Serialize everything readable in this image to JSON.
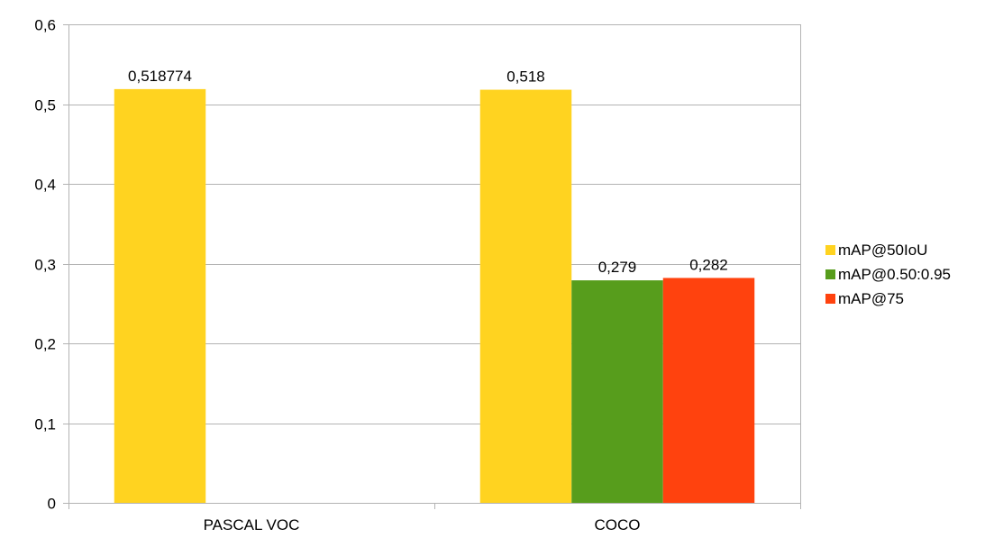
{
  "chart_data": {
    "type": "bar",
    "categories": [
      "PASCAL VOC",
      "COCO"
    ],
    "series": [
      {
        "name": "mAP@50IoU",
        "values": [
          0.518774,
          0.518
        ],
        "labels": [
          "0,518774",
          "0,518"
        ],
        "color": "#ffd320"
      },
      {
        "name": "mAP@0.50:0.95",
        "values": [
          null,
          0.279
        ],
        "labels": [
          "",
          "0,279"
        ],
        "color": "#579d1c"
      },
      {
        "name": "mAP@75",
        "values": [
          null,
          0.282
        ],
        "labels": [
          "",
          "0,282"
        ],
        "color": "#ff420e"
      }
    ],
    "ylim": [
      0,
      0.6
    ],
    "yticks": [
      0,
      0.1,
      0.2,
      0.3,
      0.4,
      0.5,
      0.6
    ],
    "ytick_labels": [
      "0",
      "0,1",
      "0,2",
      "0,3",
      "0,4",
      "0,5",
      "0,6"
    ],
    "grid": true,
    "legend_position": "right",
    "gridline_color": "#b3b3b3",
    "axis_color": "#b3b3b3"
  }
}
